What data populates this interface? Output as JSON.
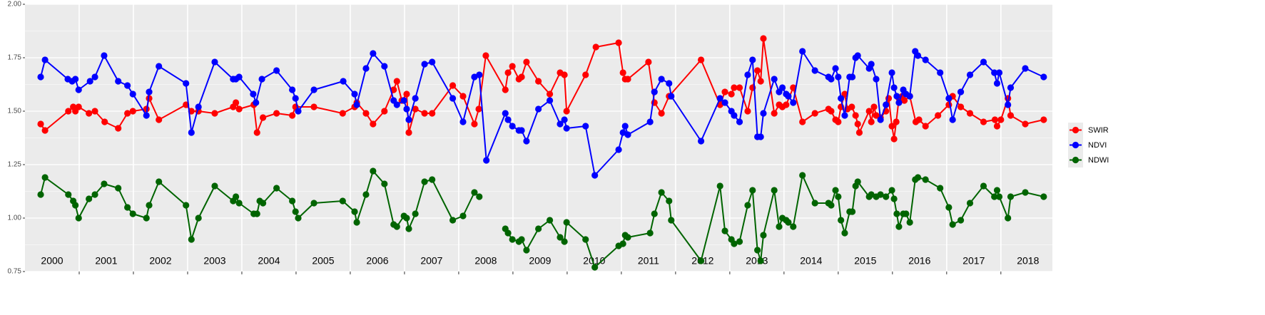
{
  "chart_data": {
    "type": "line",
    "xlim": [
      2000,
      2018.95
    ],
    "ylim": [
      0.75,
      2.0
    ],
    "yticks": [
      0.75,
      {
        "value": 1.0,
        "label": "1.00"
      },
      1.25,
      {
        "value": 1.5,
        "label": "1.50"
      },
      1.75,
      {
        "value": 2.0,
        "label": "2.00"
      }
    ],
    "y_minor_breaks": [
      0.875,
      1.125,
      1.375,
      1.625,
      1.875
    ],
    "xticks": [
      {
        "value": 2000.5,
        "label": "2000"
      },
      {
        "value": 2001.5,
        "label": "2001"
      },
      {
        "value": 2002.5,
        "label": "2002"
      },
      {
        "value": 2003.5,
        "label": "2003"
      },
      {
        "value": 2004.5,
        "label": "2004"
      },
      {
        "value": 2005.5,
        "label": "2005"
      },
      {
        "value": 2006.5,
        "label": "2006"
      },
      {
        "value": 2007.5,
        "label": "2007"
      },
      {
        "value": 2008.5,
        "label": "2008"
      },
      {
        "value": 2009.5,
        "label": "2009"
      },
      {
        "value": 2010.5,
        "label": "2010"
      },
      {
        "value": 2011.5,
        "label": "2011"
      },
      {
        "value": 2012.5,
        "label": "2012"
      },
      {
        "value": 2013.5,
        "label": "2013"
      },
      {
        "value": 2014.5,
        "label": "2014"
      },
      {
        "value": 2015.5,
        "label": "2015"
      },
      {
        "value": 2016.5,
        "label": "2016"
      },
      {
        "value": 2017.5,
        "label": "2017"
      },
      {
        "value": 2018.5,
        "label": "2018"
      }
    ],
    "x_year_breaks": [
      2001,
      2002,
      2003,
      2004,
      2005,
      2006,
      2007,
      2008,
      2009,
      2010,
      2011,
      2012,
      2013,
      2014,
      2015,
      2016,
      2017,
      2018
    ],
    "grid": true,
    "legend": "right",
    "series": [
      {
        "name": "SWIR",
        "color": "#ff0000",
        "x": [
          2000.29,
          2000.37,
          2000.8,
          2000.89,
          2000.93,
          2000.99,
          2001.18,
          2001.29,
          2001.47,
          2001.72,
          2001.89,
          2001.99,
          2002.24,
          2002.29,
          2002.47,
          2002.97,
          2003.07,
          2003.2,
          2003.5,
          2003.84,
          2003.89,
          2003.95,
          2004.22,
          2004.28,
          2004.39,
          2004.64,
          2004.93,
          2004.99,
          2005.33,
          2005.86,
          2006.08,
          2006.12,
          2006.29,
          2006.42,
          2006.63,
          2006.8,
          2006.86,
          2006.95,
          2007.04,
          2007.08,
          2007.2,
          2007.37,
          2007.51,
          2007.89,
          2008.08,
          2008.29,
          2008.37,
          2008.5,
          2008.86,
          2008.91,
          2008.99,
          2009.11,
          2009.16,
          2009.25,
          2009.47,
          2009.68,
          2009.87,
          2009.95,
          2009.99,
          2010.34,
          2010.53,
          2010.95,
          2011.03,
          2011.07,
          2011.12,
          2011.5,
          2011.61,
          2011.74,
          2011.88,
          2012.47,
          2012.82,
          2012.91,
          2013.03,
          2013.08,
          2013.18,
          2013.33,
          2013.42,
          2013.51,
          2013.57,
          2013.62,
          2013.82,
          2013.91,
          2013.97,
          2014.04,
          2014.17,
          2014.34,
          2014.57,
          2014.82,
          2014.87,
          2014.95,
          2015.0,
          2015.05,
          2015.12,
          2015.17,
          2015.25,
          2015.32,
          2015.36,
          2015.39,
          2015.57,
          2015.61,
          2015.66,
          2015.7,
          2015.78,
          2015.88,
          2015.93,
          2015.99,
          2016.03,
          2016.07,
          2016.12,
          2016.18,
          2016.22,
          2016.32,
          2016.43,
          2016.49,
          2016.61,
          2016.84,
          2017.04,
          2017.11,
          2017.26,
          2017.43,
          2017.68,
          2017.89,
          2017.93,
          2018.0,
          2018.13,
          2018.18,
          2018.45,
          2018.79
        ],
        "values": [
          1.44,
          1.41,
          1.5,
          1.52,
          1.5,
          1.52,
          1.49,
          1.5,
          1.45,
          1.42,
          1.49,
          1.5,
          1.51,
          1.56,
          1.46,
          1.53,
          1.5,
          1.5,
          1.49,
          1.52,
          1.54,
          1.51,
          1.53,
          1.4,
          1.47,
          1.49,
          1.48,
          1.52,
          1.52,
          1.49,
          1.52,
          1.54,
          1.49,
          1.44,
          1.5,
          1.6,
          1.64,
          1.55,
          1.58,
          1.4,
          1.51,
          1.49,
          1.49,
          1.62,
          1.57,
          1.44,
          1.51,
          1.76,
          1.6,
          1.68,
          1.71,
          1.65,
          1.66,
          1.73,
          1.64,
          1.58,
          1.68,
          1.67,
          1.5,
          1.67,
          1.8,
          1.82,
          1.68,
          1.65,
          1.65,
          1.73,
          1.54,
          1.49,
          1.57,
          1.74,
          1.53,
          1.59,
          1.58,
          1.61,
          1.61,
          1.5,
          1.61,
          1.69,
          1.64,
          1.84,
          1.49,
          1.53,
          1.52,
          1.53,
          1.61,
          1.45,
          1.49,
          1.51,
          1.5,
          1.46,
          1.45,
          1.52,
          1.58,
          1.51,
          1.52,
          1.48,
          1.44,
          1.4,
          1.5,
          1.45,
          1.52,
          1.48,
          1.47,
          1.5,
          1.56,
          1.43,
          1.37,
          1.45,
          1.56,
          1.57,
          1.55,
          1.57,
          1.45,
          1.46,
          1.43,
          1.48,
          1.53,
          1.57,
          1.52,
          1.49,
          1.45,
          1.46,
          1.43,
          1.46,
          1.56,
          1.48,
          1.44,
          1.46
        ]
      },
      {
        "name": "NDVI",
        "color": "#0000ff",
        "x": [
          2000.29,
          2000.37,
          2000.79,
          2000.87,
          2000.93,
          2000.99,
          2001.2,
          2001.29,
          2001.46,
          2001.72,
          2001.89,
          2001.99,
          2002.24,
          2002.29,
          2002.47,
          2002.97,
          2003.07,
          2003.2,
          2003.5,
          2003.84,
          2003.89,
          2003.95,
          2004.21,
          2004.26,
          2004.37,
          2004.64,
          2004.93,
          2004.99,
          2005.04,
          2005.33,
          2005.87,
          2006.08,
          2006.12,
          2006.29,
          2006.42,
          2006.63,
          2006.8,
          2006.86,
          2006.99,
          2007.04,
          2007.08,
          2007.2,
          2007.37,
          2007.51,
          2007.89,
          2008.08,
          2008.29,
          2008.38,
          2008.51,
          2008.86,
          2008.91,
          2008.99,
          2009.11,
          2009.16,
          2009.25,
          2009.47,
          2009.68,
          2009.87,
          2009.95,
          2009.99,
          2010.34,
          2010.51,
          2010.95,
          2011.03,
          2011.07,
          2011.12,
          2011.53,
          2011.61,
          2011.74,
          2011.88,
          2011.92,
          2012.47,
          2012.82,
          2012.91,
          2013.03,
          2013.08,
          2013.18,
          2013.33,
          2013.42,
          2013.51,
          2013.57,
          2013.62,
          2013.82,
          2013.91,
          2013.97,
          2014.04,
          2014.08,
          2014.17,
          2014.34,
          2014.57,
          2014.82,
          2014.87,
          2014.95,
          2015.0,
          2015.05,
          2015.12,
          2015.21,
          2015.26,
          2015.32,
          2015.36,
          2015.57,
          2015.61,
          2015.7,
          2015.78,
          2015.88,
          2015.99,
          2016.03,
          2016.08,
          2016.12,
          2016.2,
          2016.25,
          2016.32,
          2016.42,
          2016.47,
          2016.61,
          2016.88,
          2017.04,
          2017.11,
          2017.26,
          2017.43,
          2017.68,
          2017.88,
          2017.93,
          2017.97,
          2018.13,
          2018.18,
          2018.45,
          2018.79
        ],
        "values": [
          1.66,
          1.74,
          1.65,
          1.64,
          1.65,
          1.6,
          1.64,
          1.66,
          1.76,
          1.64,
          1.62,
          1.58,
          1.48,
          1.59,
          1.71,
          1.63,
          1.4,
          1.52,
          1.73,
          1.65,
          1.65,
          1.66,
          1.58,
          1.54,
          1.65,
          1.69,
          1.6,
          1.56,
          1.5,
          1.6,
          1.64,
          1.58,
          1.53,
          1.7,
          1.77,
          1.71,
          1.55,
          1.53,
          1.55,
          1.51,
          1.46,
          1.56,
          1.72,
          1.73,
          1.56,
          1.45,
          1.66,
          1.67,
          1.27,
          1.49,
          1.46,
          1.43,
          1.41,
          1.41,
          1.36,
          1.51,
          1.55,
          1.44,
          1.46,
          1.42,
          1.43,
          1.2,
          1.32,
          1.4,
          1.43,
          1.39,
          1.45,
          1.59,
          1.65,
          1.63,
          1.57,
          1.36,
          1.56,
          1.54,
          1.5,
          1.48,
          1.45,
          1.67,
          1.74,
          1.38,
          1.38,
          1.49,
          1.65,
          1.59,
          1.61,
          1.58,
          1.57,
          1.54,
          1.78,
          1.69,
          1.66,
          1.65,
          1.7,
          1.66,
          1.56,
          1.48,
          1.66,
          1.66,
          1.75,
          1.76,
          1.7,
          1.72,
          1.65,
          1.46,
          1.53,
          1.68,
          1.61,
          1.57,
          1.54,
          1.6,
          1.58,
          1.57,
          1.78,
          1.76,
          1.74,
          1.68,
          1.56,
          1.46,
          1.59,
          1.67,
          1.73,
          1.68,
          1.63,
          1.68,
          1.53,
          1.61,
          1.7,
          1.66
        ]
      },
      {
        "name": "NDWI",
        "color": "#006400",
        "x": [
          2000.29,
          2000.37,
          2000.8,
          2000.89,
          2000.93,
          2000.99,
          2001.18,
          2001.29,
          2001.46,
          2001.72,
          2001.89,
          2001.99,
          2002.24,
          2002.29,
          2002.47,
          2002.97,
          2003.07,
          2003.2,
          2003.5,
          2003.84,
          2003.89,
          2003.95,
          2004.22,
          2004.28,
          2004.33,
          2004.39,
          2004.64,
          2004.93,
          2004.99,
          2005.04,
          2005.33,
          2005.86,
          2006.08,
          2006.12,
          2006.29,
          2006.42,
          2006.63,
          2006.8,
          2006.86,
          2006.99,
          2007.04,
          2007.08,
          2007.2,
          2007.37,
          2007.51,
          2007.89,
          2008.08,
          2008.29,
          2008.38,
          2008.51,
          2008.86,
          2008.91,
          2008.99,
          2009.11,
          2009.16,
          2009.25,
          2009.47,
          2009.68,
          2009.87,
          2009.95,
          2009.99,
          2010.34,
          2010.51,
          2010.95,
          2011.03,
          2011.07,
          2011.12,
          2011.53,
          2011.61,
          2011.74,
          2011.88,
          2011.92,
          2012.47,
          2012.82,
          2012.91,
          2013.03,
          2013.08,
          2013.18,
          2013.33,
          2013.42,
          2013.51,
          2013.57,
          2013.62,
          2013.82,
          2013.91,
          2013.97,
          2014.04,
          2014.08,
          2014.17,
          2014.34,
          2014.57,
          2014.82,
          2014.87,
          2014.95,
          2015.0,
          2015.05,
          2015.12,
          2015.21,
          2015.26,
          2015.32,
          2015.36,
          2015.57,
          2015.61,
          2015.7,
          2015.78,
          2015.88,
          2015.99,
          2016.03,
          2016.08,
          2016.12,
          2016.2,
          2016.25,
          2016.32,
          2016.42,
          2016.47,
          2016.61,
          2016.88,
          2017.04,
          2017.11,
          2017.26,
          2017.43,
          2017.68,
          2017.88,
          2017.93,
          2017.97,
          2018.13,
          2018.18,
          2018.45,
          2018.79
        ],
        "values": [
          1.11,
          1.19,
          1.11,
          1.08,
          1.06,
          1.0,
          1.09,
          1.11,
          1.16,
          1.14,
          1.05,
          1.02,
          1.0,
          1.06,
          1.17,
          1.06,
          0.9,
          1.0,
          1.15,
          1.08,
          1.1,
          1.07,
          1.02,
          1.02,
          1.08,
          1.07,
          1.14,
          1.08,
          1.03,
          1.0,
          1.07,
          1.08,
          1.03,
          0.98,
          1.11,
          1.22,
          1.16,
          0.97,
          0.96,
          1.01,
          1.0,
          0.95,
          1.02,
          1.17,
          1.18,
          0.99,
          1.01,
          1.12,
          1.1,
          null,
          0.95,
          0.93,
          0.9,
          0.89,
          0.9,
          0.85,
          0.95,
          0.99,
          0.91,
          0.89,
          0.98,
          0.9,
          0.77,
          0.87,
          0.88,
          0.92,
          0.91,
          0.93,
          1.02,
          1.12,
          1.08,
          0.99,
          0.8,
          1.15,
          0.94,
          0.9,
          0.88,
          0.89,
          1.06,
          1.13,
          0.85,
          0.8,
          0.92,
          1.13,
          0.96,
          1.0,
          0.99,
          0.98,
          0.96,
          1.2,
          1.07,
          1.07,
          1.06,
          1.13,
          1.1,
          0.99,
          0.93,
          1.03,
          1.03,
          1.15,
          1.17,
          1.1,
          1.11,
          1.1,
          1.11,
          1.1,
          1.13,
          1.09,
          1.02,
          0.96,
          1.02,
          1.02,
          0.98,
          1.18,
          1.19,
          1.18,
          1.14,
          1.05,
          0.97,
          0.99,
          1.07,
          1.15,
          1.1,
          1.13,
          1.1,
          1.0,
          1.1,
          1.12,
          1.1
        ]
      }
    ]
  }
}
